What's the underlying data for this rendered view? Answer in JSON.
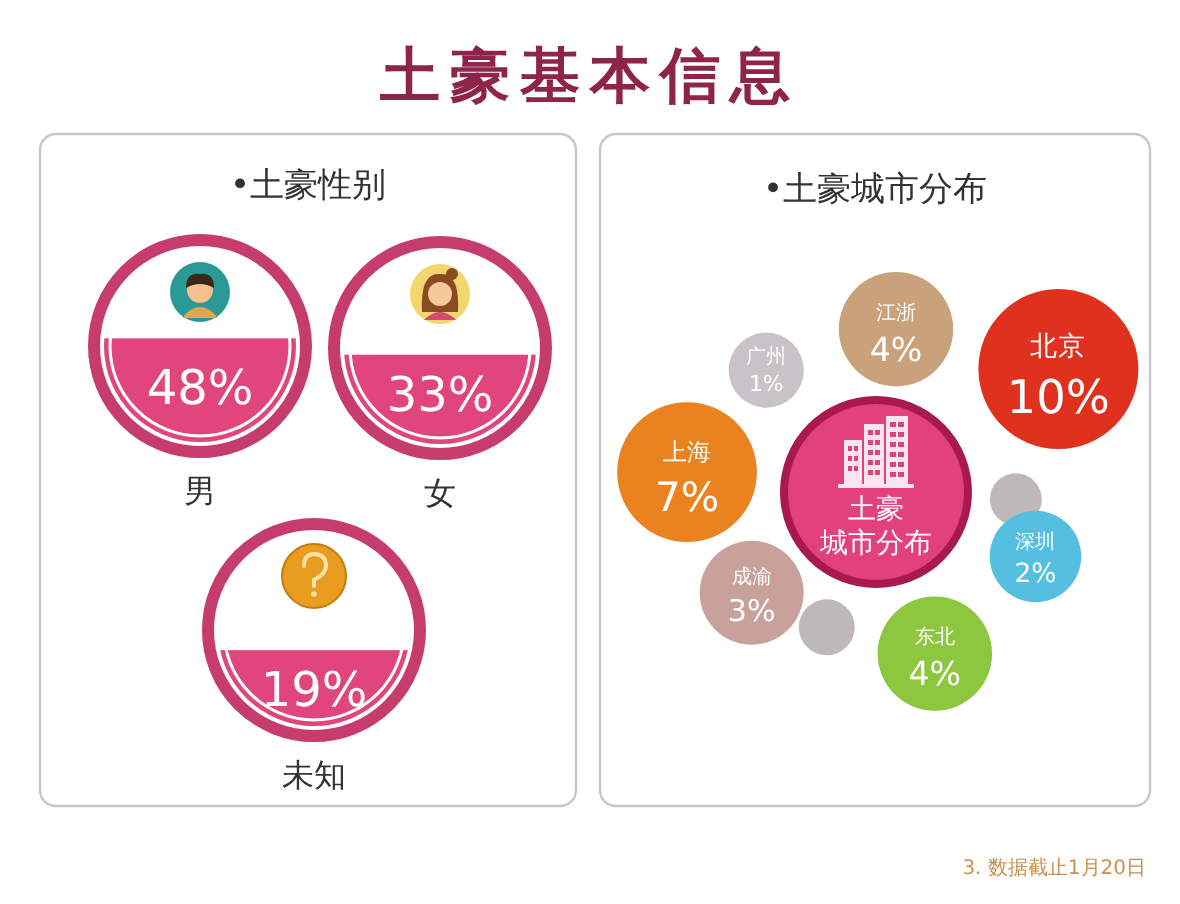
{
  "chart_data": [
    {
      "type": "other",
      "title": "土豪基本信息",
      "subtitle": "•土豪性别",
      "categories": [
        "男",
        "女",
        "未知"
      ],
      "values": [
        48,
        33,
        19
      ],
      "value_labels": [
        "48%",
        "33%",
        "19%"
      ],
      "color": "#e0457b"
    },
    {
      "type": "other",
      "title": "•土豪城市分布",
      "categories": [
        "江浙",
        "北京",
        "广州",
        "上海",
        "深圳",
        "成渝",
        "东北"
      ],
      "values": [
        4,
        10,
        1,
        7,
        2,
        3,
        4
      ],
      "value_labels": [
        "4%",
        "10%",
        "1%",
        "7%",
        "2%",
        "3%",
        "4%"
      ],
      "colors": [
        "#c9a27c",
        "#e0311f",
        "#c9c3c7",
        "#e9821f",
        "#55bfe0",
        "#c8a19b",
        "#8dc63f"
      ],
      "annotations": [
        "土豪",
        "城市分布",
        "3. 数据截止1月20日"
      ]
    }
  ]
}
